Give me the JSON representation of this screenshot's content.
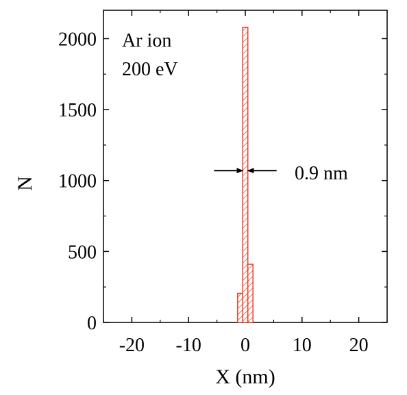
{
  "chart_data": {
    "type": "bar",
    "title": "",
    "xlabel": "X (nm)",
    "ylabel": "N",
    "xlim": [
      -25,
      25
    ],
    "ylim": [
      0,
      2200
    ],
    "xticks": [
      -20,
      -10,
      0,
      10,
      20
    ],
    "xtick_labels": [
      "-20",
      "-10",
      "0",
      "10",
      "20"
    ],
    "yticks": [
      0,
      500,
      1000,
      1500,
      2000
    ],
    "ytick_labels": [
      "0",
      "500",
      "1000",
      "1500",
      "2000"
    ],
    "bin_width": 0.9,
    "bins": [
      {
        "x": -0.9,
        "value": 205
      },
      {
        "x": 0.0,
        "value": 2080
      },
      {
        "x": 0.9,
        "value": 410
      }
    ],
    "bar_color": "#ee3b23",
    "annotations": {
      "legend_line1": "Ar ion",
      "legend_line2": "200 eV",
      "width_label": "0.9 nm",
      "width_marker_y": 1070
    },
    "grid": false
  }
}
